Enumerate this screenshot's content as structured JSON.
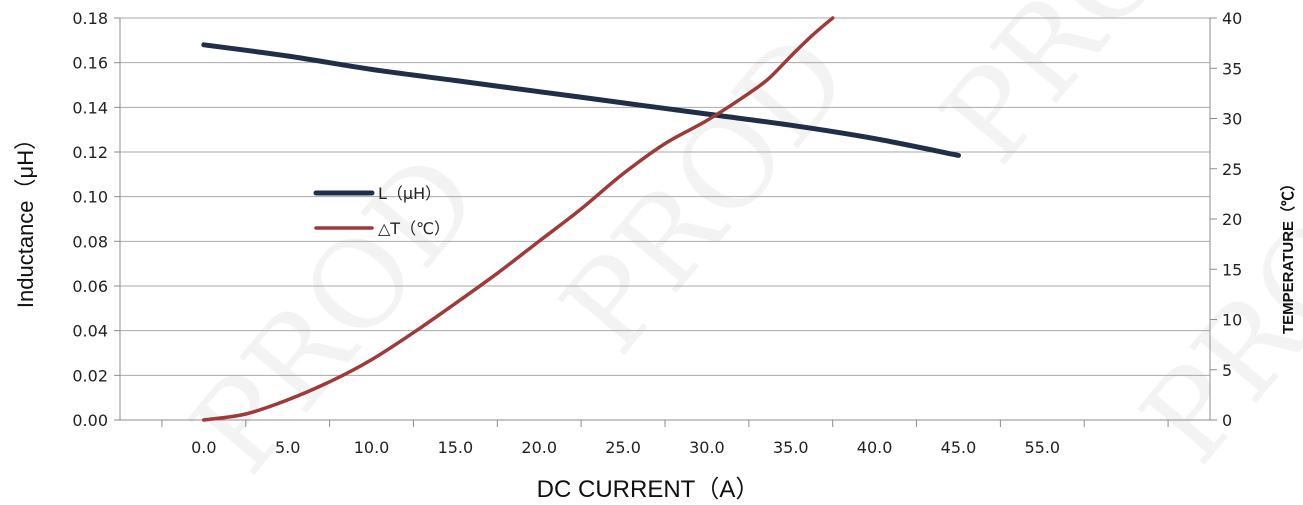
{
  "chart_data": {
    "type": "line",
    "title": "",
    "xlabel": "DC CURRENT（A）",
    "ylabel": "Inductance（μH）",
    "y2label": "TEMPERATURE（℃）",
    "xlim": [
      -5,
      60
    ],
    "ylim": [
      0,
      0.18
    ],
    "y2lim": [
      0,
      40
    ],
    "xticks": [
      "0.0",
      "5.0",
      "10.0",
      "15.0",
      "20.0",
      "25.0",
      "30.0",
      "35.0",
      "40.0",
      "45.0",
      "55.0"
    ],
    "yticks": [
      "0.00",
      "0.02",
      "0.04",
      "0.06",
      "0.08",
      "0.10",
      "0.12",
      "0.14",
      "0.16",
      "0.18"
    ],
    "y2ticks": [
      "0",
      "5",
      "10",
      "15",
      "20",
      "25",
      "30",
      "35",
      "40"
    ],
    "grid": true,
    "legend_position": "left-center",
    "watermark": "PROD",
    "series": [
      {
        "name": "L（μH）",
        "axis": "left",
        "color": "#1f2f4a",
        "x": [
          0,
          5,
          10,
          15,
          20,
          25,
          30,
          35,
          40,
          45
        ],
        "y": [
          0.168,
          0.163,
          0.157,
          0.152,
          0.147,
          0.142,
          0.137,
          0.132,
          0.126,
          0.1185
        ]
      },
      {
        "name": "△T（℃）",
        "axis": "right",
        "color": "#9e3a38",
        "x": [
          0,
          2.5,
          5,
          7.5,
          10,
          12.5,
          15,
          17.5,
          20,
          22.5,
          25,
          27.5,
          30,
          32.5,
          33.7,
          35,
          36.3,
          37.5
        ],
        "y": [
          0,
          0.6,
          2.0,
          3.8,
          6.0,
          8.7,
          11.6,
          14.6,
          17.8,
          21.0,
          24.5,
          27.5,
          29.8,
          32.5,
          34.0,
          36.2,
          38.3,
          40
        ]
      }
    ]
  }
}
